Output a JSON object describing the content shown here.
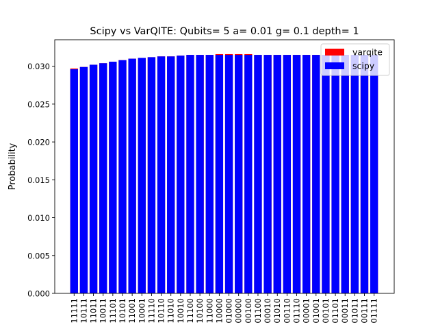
{
  "chart_data": {
    "type": "bar",
    "title": "Scipy vs VarQITE: Qubits= 5 a= 0.01 g= 0.1 depth= 1",
    "xlabel": "",
    "ylabel": "Probability",
    "ylim": [
      0.0,
      0.0335
    ],
    "yticks": [
      0.0,
      0.005,
      0.01,
      0.015,
      0.02,
      0.025,
      0.03
    ],
    "ytick_labels": [
      "0.000",
      "0.005",
      "0.010",
      "0.015",
      "0.020",
      "0.025",
      "0.030"
    ],
    "legend_position": "top-right",
    "grid": false,
    "categories": [
      "11111",
      "10111",
      "11011",
      "10011",
      "11101",
      "10101",
      "11001",
      "10001",
      "11110",
      "10110",
      "11010",
      "10010",
      "11100",
      "10100",
      "11000",
      "10000",
      "01000",
      "00000",
      "00100",
      "01100",
      "00010",
      "01010",
      "00110",
      "01110",
      "00001",
      "01001",
      "00101",
      "01101",
      "00011",
      "01011",
      "00111",
      "01111"
    ],
    "series": [
      {
        "name": "varqite",
        "color": "#ff0000",
        "values": [
          0.0297,
          0.0299,
          0.0302,
          0.0304,
          0.0306,
          0.0308,
          0.031,
          0.0311,
          0.0312,
          0.0313,
          0.0313,
          0.0314,
          0.0315,
          0.0315,
          0.0315,
          0.0316,
          0.0316,
          0.0316,
          0.0316,
          0.0315,
          0.0315,
          0.0315,
          0.0315,
          0.0315,
          0.0315,
          0.0315,
          0.0315,
          0.0315,
          0.0315,
          0.0315,
          0.0315,
          0.0315
        ]
      },
      {
        "name": "scipy",
        "color": "#0000ff",
        "values": [
          0.0296,
          0.0299,
          0.0302,
          0.0304,
          0.0306,
          0.0308,
          0.031,
          0.0311,
          0.0312,
          0.0313,
          0.0313,
          0.0314,
          0.0315,
          0.0315,
          0.0315,
          0.0315,
          0.0315,
          0.0315,
          0.0315,
          0.0315,
          0.0315,
          0.0315,
          0.0315,
          0.0315,
          0.0315,
          0.0315,
          0.0315,
          0.0315,
          0.0315,
          0.0315,
          0.0315,
          0.0315
        ]
      }
    ]
  }
}
